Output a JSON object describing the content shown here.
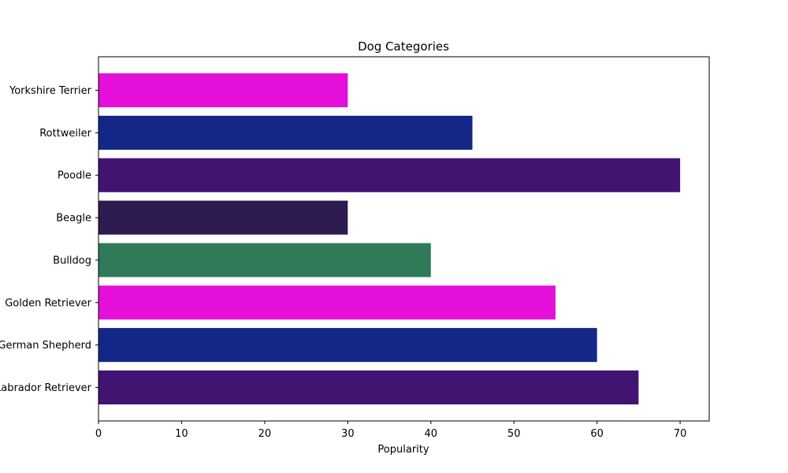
{
  "chart_data": {
    "type": "bar",
    "orientation": "horizontal",
    "title": "Dog Categories",
    "xlabel": "Popularity",
    "ylabel": "",
    "categories": [
      "Labrador Retriever",
      "German Shepherd",
      "Golden Retriever",
      "Bulldog",
      "Beagle",
      "Poodle",
      "Rottweiler",
      "Yorkshire Terrier"
    ],
    "values": [
      65,
      60,
      55,
      40,
      30,
      70,
      45,
      30
    ],
    "colors": [
      "#411472",
      "#142687",
      "#e40fd9",
      "#307a5a",
      "#2d1b50",
      "#411472",
      "#142687",
      "#e40fd9"
    ],
    "xlim": [
      0,
      73.5
    ],
    "xticks": [
      0,
      10,
      20,
      30,
      40,
      50,
      60,
      70
    ],
    "grid": false,
    "legend": "none"
  }
}
